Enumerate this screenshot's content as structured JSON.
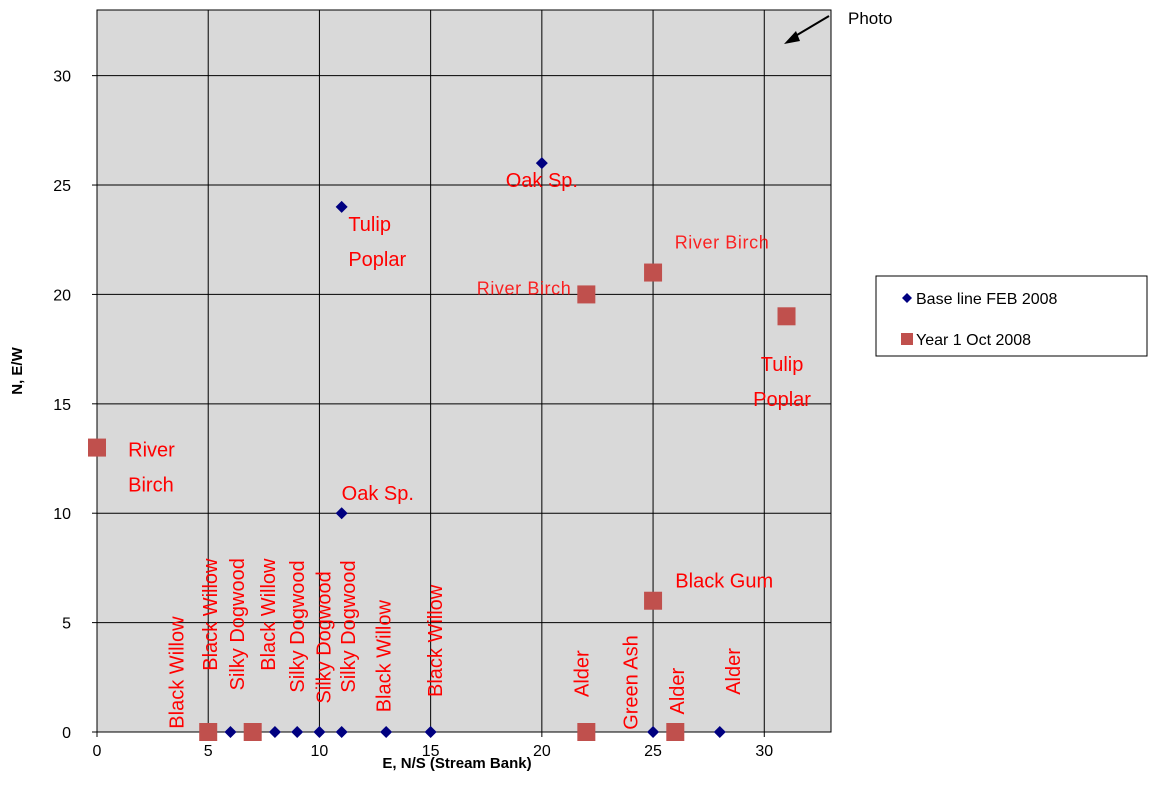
{
  "chart_data": {
    "type": "scatter",
    "xlabel": "E, N/S (Stream Bank)",
    "ylabel": "N, E/W",
    "xlim": [
      0,
      33
    ],
    "ylim": [
      0,
      33
    ],
    "xticks": [
      0,
      5,
      10,
      15,
      20,
      25,
      30
    ],
    "yticks": [
      0,
      5,
      10,
      15,
      20,
      25,
      30
    ],
    "grid": true,
    "plot_background": "#d9d9d9",
    "legend_position": "right",
    "series": [
      {
        "name": "Base line FEB 2008",
        "marker": "diamond",
        "color": "#000080",
        "points": [
          {
            "x": 6,
            "y": 0
          },
          {
            "x": 8,
            "y": 0
          },
          {
            "x": 9,
            "y": 0
          },
          {
            "x": 10,
            "y": 0
          },
          {
            "x": 11,
            "y": 0
          },
          {
            "x": 13,
            "y": 0
          },
          {
            "x": 15,
            "y": 0
          },
          {
            "x": 25,
            "y": 0
          },
          {
            "x": 28,
            "y": 0
          },
          {
            "x": 11,
            "y": 10
          },
          {
            "x": 11,
            "y": 24
          },
          {
            "x": 20,
            "y": 26
          }
        ]
      },
      {
        "name": "Year 1 Oct 2008",
        "marker": "square",
        "color": "#c0504d",
        "points": [
          {
            "x": 0,
            "y": 13
          },
          {
            "x": 5,
            "y": 0
          },
          {
            "x": 7,
            "y": 0
          },
          {
            "x": 22,
            "y": 0
          },
          {
            "x": 26,
            "y": 0
          },
          {
            "x": 22,
            "y": 20
          },
          {
            "x": 25,
            "y": 21
          },
          {
            "x": 25,
            "y": 6
          },
          {
            "x": 31,
            "y": 19
          }
        ]
      }
    ],
    "annotations": [
      {
        "lines": [
          "River",
          "Birch"
        ],
        "x": 1.4,
        "y": 12.6,
        "anchor": "start",
        "rotate": false
      },
      {
        "lines": [
          "Tulip",
          "Poplar"
        ],
        "x": 11.3,
        "y": 22.9,
        "anchor": "start",
        "rotate": false
      },
      {
        "lines": [
          "Oak Sp."
        ],
        "x": 20,
        "y": 24.9,
        "anchor": "middle",
        "rotate": false
      },
      {
        "lines": [
          "Oak Sp."
        ],
        "x": 11,
        "y": 10.6,
        "anchor": "start",
        "rotate": false
      },
      {
        "lines": [
          "River Birch"
        ],
        "x": 19.2,
        "y": 20,
        "anchor": "middle",
        "rotate": false,
        "squish": true
      },
      {
        "lines": [
          "River Birch"
        ],
        "x": 28.1,
        "y": 22.1,
        "anchor": "middle",
        "rotate": false,
        "squish": true
      },
      {
        "lines": [
          "Tulip",
          "Poplar"
        ],
        "x": 30.8,
        "y": 16.5,
        "anchor": "middle",
        "rotate": false
      },
      {
        "lines": [
          "Black Gum"
        ],
        "x": 26,
        "y": 6.6,
        "anchor": "start",
        "rotate": false
      },
      {
        "lines": [
          "Black Willow"
        ],
        "x": 3.9,
        "y": 0.15,
        "anchor": "start",
        "rotate": true
      },
      {
        "lines": [
          "Black Willow"
        ],
        "x": 5.4,
        "y": 2.8,
        "anchor": "start",
        "rotate": true
      },
      {
        "lines": [
          "Silky Dogwood"
        ],
        "x": 6.6,
        "y": 1.9,
        "anchor": "start",
        "rotate": true
      },
      {
        "lines": [
          "Black Willow"
        ],
        "x": 8,
        "y": 2.8,
        "anchor": "start",
        "rotate": true
      },
      {
        "lines": [
          "Silky Dogwood"
        ],
        "x": 9.3,
        "y": 1.8,
        "anchor": "start",
        "rotate": true
      },
      {
        "lines": [
          "Silky Dogwood"
        ],
        "x": 10.5,
        "y": 1.3,
        "anchor": "start",
        "rotate": true
      },
      {
        "lines": [
          "Silky Dogwood"
        ],
        "x": 11.6,
        "y": 1.8,
        "anchor": "start",
        "rotate": true
      },
      {
        "lines": [
          "Black Willow"
        ],
        "x": 13.2,
        "y": 0.9,
        "anchor": "start",
        "rotate": true
      },
      {
        "lines": [
          "Black Willow"
        ],
        "x": 15.5,
        "y": 1.6,
        "anchor": "start",
        "rotate": true
      },
      {
        "lines": [
          "Alder"
        ],
        "x": 22.1,
        "y": 1.6,
        "anchor": "start",
        "rotate": true
      },
      {
        "lines": [
          "Green Ash"
        ],
        "x": 24.3,
        "y": 0.1,
        "anchor": "start",
        "rotate": true
      },
      {
        "lines": [
          "Alder"
        ],
        "x": 26.4,
        "y": 0.8,
        "anchor": "start",
        "rotate": true
      },
      {
        "lines": [
          "Alder"
        ],
        "x": 28.9,
        "y": 1.7,
        "anchor": "start",
        "rotate": true
      }
    ],
    "callout": {
      "label": "Photo",
      "arrow_color": "#000000"
    }
  }
}
